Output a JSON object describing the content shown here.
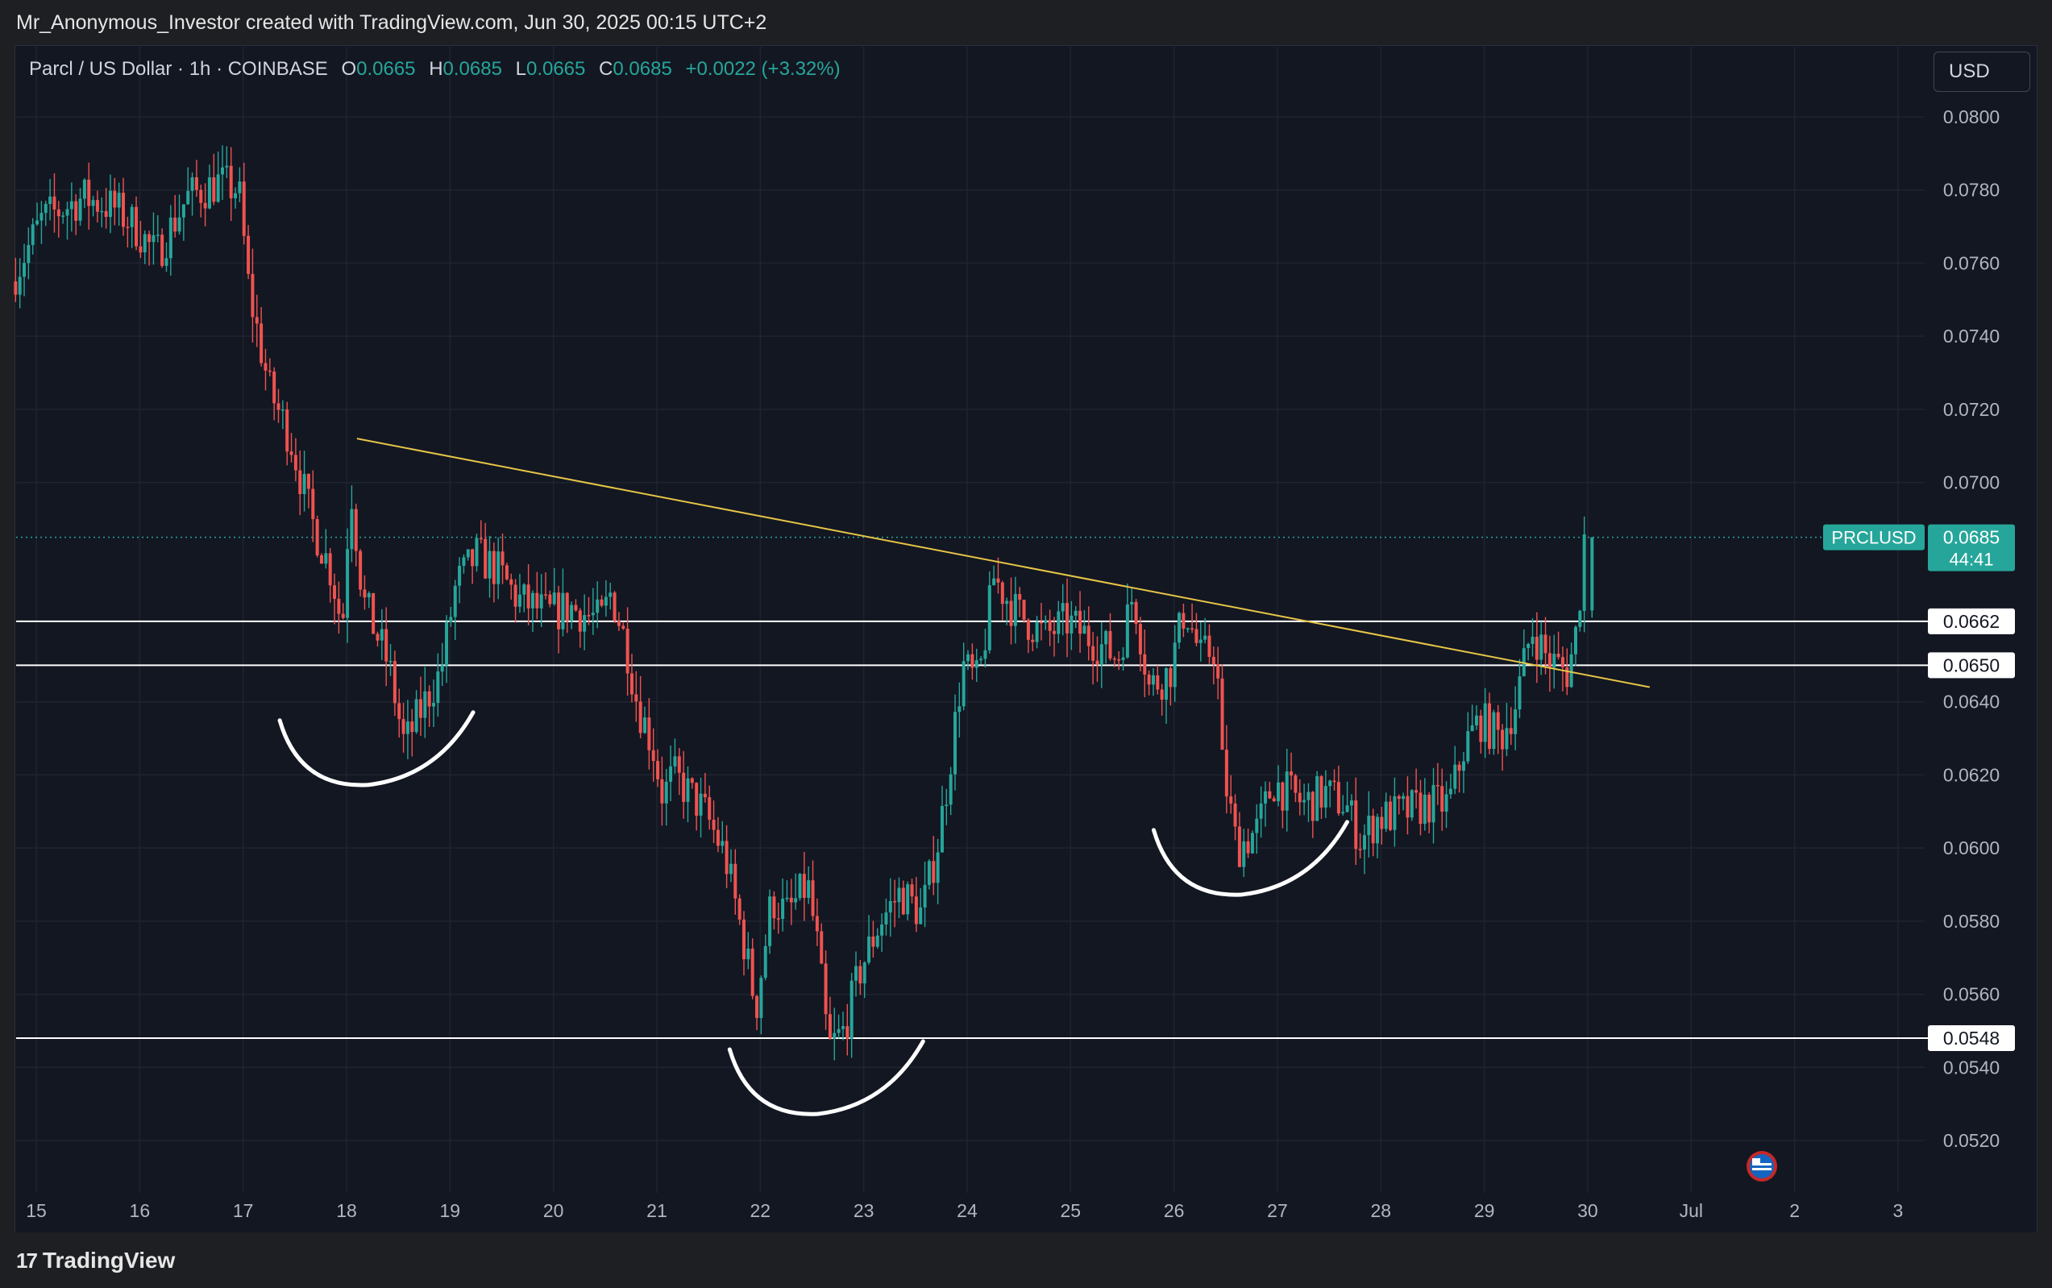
{
  "header": {
    "credit": "Mr_Anonymous_Investor created with TradingView.com, Jun 30, 2025 00:15 UTC+2"
  },
  "legend": {
    "symbol": "Parcl / US Dollar · 1h · COINBASE",
    "open_label": "O",
    "open": "0.0665",
    "high_label": "H",
    "high": "0.0685",
    "low_label": "L",
    "low": "0.0665",
    "close_label": "C",
    "close": "0.0685",
    "change": "+0.0022 (+3.32%)"
  },
  "currency_button": {
    "label": "USD"
  },
  "footer": {
    "logo_mark": "17",
    "logo_text": "TradingView"
  },
  "colors": {
    "up": "#26a69a",
    "down": "#ef5350",
    "background": "#131722",
    "grid": "#1f2430",
    "trendline": "#e8c547",
    "level": "#ffffff",
    "axis_text": "#b2b5be"
  },
  "chart_data": {
    "type": "candlestick",
    "ylim": [
      0.051,
      0.081
    ],
    "y_ticks": [
      "0.0800",
      "0.0780",
      "0.0760",
      "0.0740",
      "0.0720",
      "0.0700",
      "0.0640",
      "0.0620",
      "0.0600",
      "0.0580",
      "0.0560",
      "0.0540",
      "0.0520"
    ],
    "x_ticks": [
      {
        "label": "15",
        "day": 15
      },
      {
        "label": "16",
        "day": 16
      },
      {
        "label": "17",
        "day": 17
      },
      {
        "label": "18",
        "day": 18
      },
      {
        "label": "19",
        "day": 19
      },
      {
        "label": "20",
        "day": 20
      },
      {
        "label": "21",
        "day": 21
      },
      {
        "label": "22",
        "day": 22
      },
      {
        "label": "23",
        "day": 23
      },
      {
        "label": "24",
        "day": 24
      },
      {
        "label": "25",
        "day": 25
      },
      {
        "label": "26",
        "day": 26
      },
      {
        "label": "27",
        "day": 27
      },
      {
        "label": "28",
        "day": 28
      },
      {
        "label": "29",
        "day": 29
      },
      {
        "label": "30",
        "day": 30
      },
      {
        "label": "Jul",
        "day": 31
      },
      {
        "label": "2",
        "day": 32
      },
      {
        "label": "3",
        "day": 33
      }
    ],
    "price_path": [
      [
        14.8,
        0.0755
      ],
      [
        15.1,
        0.0772
      ],
      [
        15.5,
        0.0778
      ],
      [
        15.8,
        0.0775
      ],
      [
        16.0,
        0.077
      ],
      [
        16.2,
        0.0762
      ],
      [
        16.5,
        0.0778
      ],
      [
        16.8,
        0.0782
      ],
      [
        17.0,
        0.078
      ],
      [
        17.1,
        0.0752
      ],
      [
        17.3,
        0.0725
      ],
      [
        17.5,
        0.0712
      ],
      [
        17.7,
        0.069
      ],
      [
        17.9,
        0.0675
      ],
      [
        18.0,
        0.066
      ],
      [
        18.08,
        0.07
      ],
      [
        18.2,
        0.0668
      ],
      [
        18.45,
        0.065
      ],
      [
        18.6,
        0.0628
      ],
      [
        18.8,
        0.064
      ],
      [
        18.95,
        0.0648
      ],
      [
        19.1,
        0.0672
      ],
      [
        19.3,
        0.068
      ],
      [
        19.5,
        0.0676
      ],
      [
        19.7,
        0.0668
      ],
      [
        20.0,
        0.0664
      ],
      [
        20.2,
        0.0666
      ],
      [
        20.5,
        0.0662
      ],
      [
        20.6,
        0.067
      ],
      [
        20.75,
        0.0655
      ],
      [
        20.85,
        0.064
      ],
      [
        21.0,
        0.0628
      ],
      [
        21.1,
        0.0614
      ],
      [
        21.2,
        0.062
      ],
      [
        21.5,
        0.061
      ],
      [
        21.7,
        0.0598
      ],
      [
        21.9,
        0.0572
      ],
      [
        22.0,
        0.0556
      ],
      [
        22.15,
        0.0586
      ],
      [
        22.3,
        0.0582
      ],
      [
        22.5,
        0.059
      ],
      [
        22.6,
        0.0572
      ],
      [
        22.7,
        0.0545
      ],
      [
        22.85,
        0.055
      ],
      [
        23.0,
        0.0566
      ],
      [
        23.2,
        0.058
      ],
      [
        23.4,
        0.0588
      ],
      [
        23.6,
        0.0582
      ],
      [
        23.75,
        0.06
      ],
      [
        23.85,
        0.0618
      ],
      [
        24.0,
        0.065
      ],
      [
        24.15,
        0.0645
      ],
      [
        24.3,
        0.0674
      ],
      [
        24.5,
        0.0665
      ],
      [
        24.8,
        0.0658
      ],
      [
        25.0,
        0.0662
      ],
      [
        25.3,
        0.0656
      ],
      [
        25.5,
        0.0652
      ],
      [
        25.65,
        0.067
      ],
      [
        25.8,
        0.0644
      ],
      [
        26.0,
        0.0648
      ],
      [
        26.15,
        0.0666
      ],
      [
        26.3,
        0.0652
      ],
      [
        26.45,
        0.0655
      ],
      [
        26.5,
        0.0624
      ],
      [
        26.65,
        0.06
      ],
      [
        26.85,
        0.0605
      ],
      [
        27.0,
        0.0618
      ],
      [
        27.3,
        0.0612
      ],
      [
        27.5,
        0.0615
      ],
      [
        27.7,
        0.0612
      ],
      [
        27.85,
        0.0602
      ],
      [
        28.0,
        0.0608
      ],
      [
        28.3,
        0.061
      ],
      [
        28.5,
        0.0612
      ],
      [
        28.7,
        0.0612
      ],
      [
        28.85,
        0.0628
      ],
      [
        29.0,
        0.0635
      ],
      [
        29.2,
        0.063
      ],
      [
        29.35,
        0.064
      ],
      [
        29.5,
        0.066
      ],
      [
        29.65,
        0.0652
      ],
      [
        29.85,
        0.0648
      ],
      [
        29.95,
        0.0662
      ],
      [
        30.0,
        0.0685
      ]
    ],
    "last_price": {
      "symbol": "PRCLUSD",
      "value": "0.0685",
      "countdown": "44:41"
    },
    "horizontal_levels": [
      "0.0662",
      "0.0650",
      "0.0548"
    ],
    "trendline": {
      "from": [
        18.1,
        0.0712
      ],
      "to": [
        30.6,
        0.0644
      ]
    },
    "annotations": [
      {
        "type": "arc",
        "center": [
          18.25,
          0.0625
        ]
      },
      {
        "type": "arc",
        "center": [
          22.6,
          0.0535
        ]
      },
      {
        "type": "arc",
        "center": [
          26.7,
          0.0595
        ]
      }
    ]
  }
}
